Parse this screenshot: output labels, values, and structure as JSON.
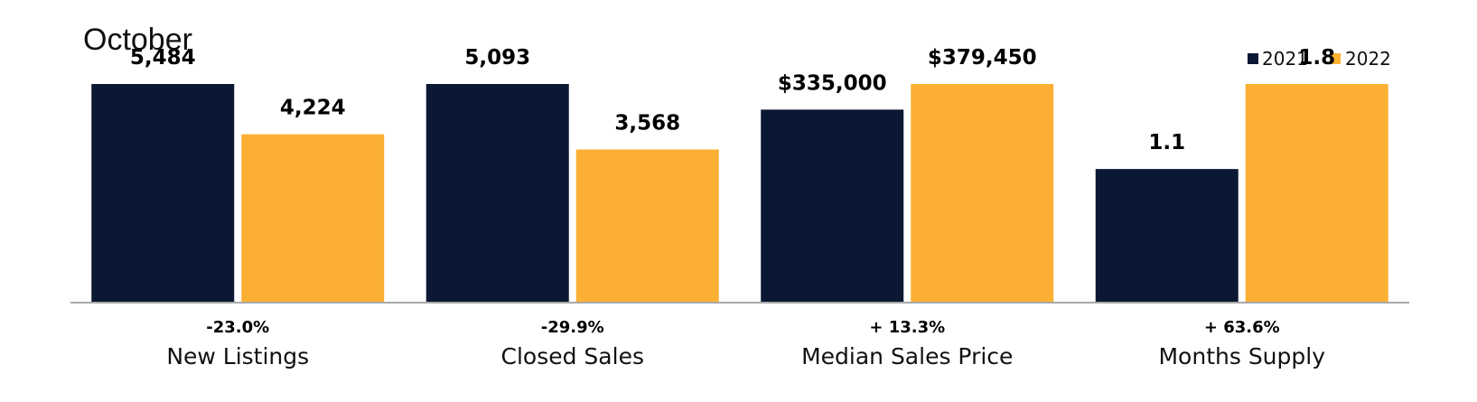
{
  "chart_data": {
    "type": "bar",
    "title": "October",
    "categories": [
      "New Listings",
      "Closed Sales",
      "Median Sales Price",
      "Months Supply"
    ],
    "changes": [
      "-23.0%",
      "-29.9%",
      "+ 13.3%",
      "+ 63.6%"
    ],
    "series": [
      {
        "name": "2021",
        "color": "#0b1834",
        "values": [
          5484,
          5093,
          335000,
          1.1
        ],
        "labels": [
          "5,484",
          "5,093",
          "$335,000",
          "1.1"
        ]
      },
      {
        "name": "2022",
        "color": "#fbb034",
        "values": [
          4224,
          3568,
          379450,
          1.8
        ],
        "labels": [
          "4,224",
          "3,568",
          "$379,450",
          "1.8"
        ]
      }
    ],
    "scale": "independent per category",
    "legend_position": "top-right",
    "grid": false
  }
}
